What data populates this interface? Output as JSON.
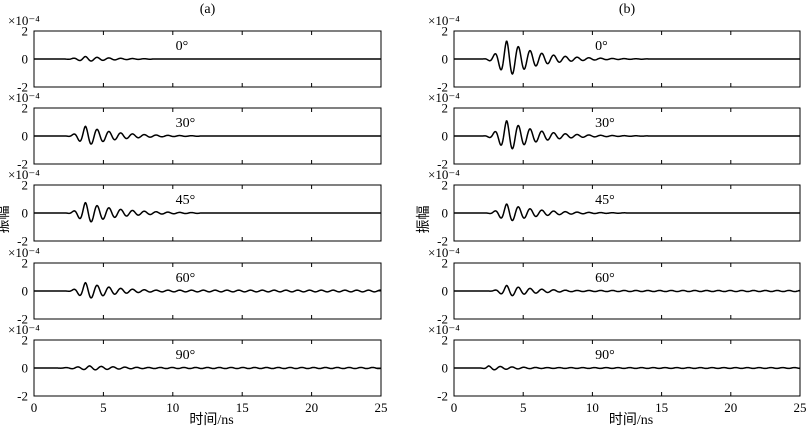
{
  "figure": {
    "xlabel": "时间/ns",
    "ylabel": "振幅"
  },
  "chart_data": [
    {
      "type": "line",
      "panel_label": "(a)",
      "xlabel": "时间/ns",
      "ylabel": "振幅",
      "xlim": [
        0,
        25
      ],
      "ylim": [
        -2,
        2
      ],
      "y_exponent_label": "×10⁻⁴",
      "x_ticks": [
        "0",
        "5",
        "10",
        "15",
        "20",
        "25"
      ],
      "y_ticks": [
        "-2",
        "0",
        "2"
      ],
      "grid": false,
      "subplots": [
        {
          "angle_label": "0°",
          "waveform": {
            "onset": 1.8,
            "end": 8.5,
            "peak_time": 3.7,
            "peak_amplitude": 0.18,
            "period": 0.85,
            "decay": 2.0,
            "tail": 0.0
          }
        },
        {
          "angle_label": "30°",
          "waveform": {
            "onset": 2.2,
            "end": 12.0,
            "peak_time": 3.7,
            "peak_amplitude": 0.7,
            "period": 0.85,
            "decay": 2.2,
            "tail": 0.0
          }
        },
        {
          "angle_label": "45°",
          "waveform": {
            "onset": 2.2,
            "end": 12.0,
            "peak_time": 3.7,
            "peak_amplitude": 0.75,
            "period": 0.85,
            "decay": 2.4,
            "tail": 0.0
          }
        },
        {
          "angle_label": "60°",
          "waveform": {
            "onset": 2.2,
            "end": 25.0,
            "peak_time": 3.7,
            "peak_amplitude": 0.6,
            "period": 0.85,
            "decay": 2.2,
            "tail": 0.06
          }
        },
        {
          "angle_label": "90°",
          "waveform": {
            "onset": 1.0,
            "end": 25.0,
            "peak_time": 4.0,
            "peak_amplitude": 0.15,
            "period": 0.85,
            "decay": 3.0,
            "tail": 0.04
          }
        }
      ]
    },
    {
      "type": "line",
      "panel_label": "(b)",
      "xlabel": "时间/ns",
      "ylabel": "振幅",
      "xlim": [
        0,
        25
      ],
      "ylim": [
        -2,
        2
      ],
      "y_exponent_label": "×10⁻⁴",
      "x_ticks": [
        "0",
        "5",
        "10",
        "15",
        "20",
        "25"
      ],
      "y_ticks": [
        "-2",
        "0",
        "2"
      ],
      "grid": false,
      "subplots": [
        {
          "angle_label": "0°",
          "waveform": {
            "onset": 2.0,
            "end": 14.0,
            "peak_time": 3.8,
            "peak_amplitude": 1.3,
            "period": 0.85,
            "decay": 2.2,
            "tail": 0.0
          }
        },
        {
          "angle_label": "30°",
          "waveform": {
            "onset": 2.0,
            "end": 14.0,
            "peak_time": 3.8,
            "peak_amplitude": 1.1,
            "period": 0.85,
            "decay": 2.2,
            "tail": 0.0
          }
        },
        {
          "angle_label": "45°",
          "waveform": {
            "onset": 2.2,
            "end": 12.5,
            "peak_time": 3.8,
            "peak_amplitude": 0.65,
            "period": 0.85,
            "decay": 2.2,
            "tail": 0.0
          }
        },
        {
          "angle_label": "60°",
          "waveform": {
            "onset": 2.4,
            "end": 25.0,
            "peak_time": 3.8,
            "peak_amplitude": 0.4,
            "period": 0.85,
            "decay": 2.2,
            "tail": 0.04
          }
        },
        {
          "angle_label": "90°",
          "waveform": {
            "onset": 1.8,
            "end": 25.0,
            "peak_time": 2.5,
            "peak_amplitude": 0.15,
            "period": 0.85,
            "decay": 2.5,
            "tail": 0.03
          }
        }
      ]
    }
  ]
}
